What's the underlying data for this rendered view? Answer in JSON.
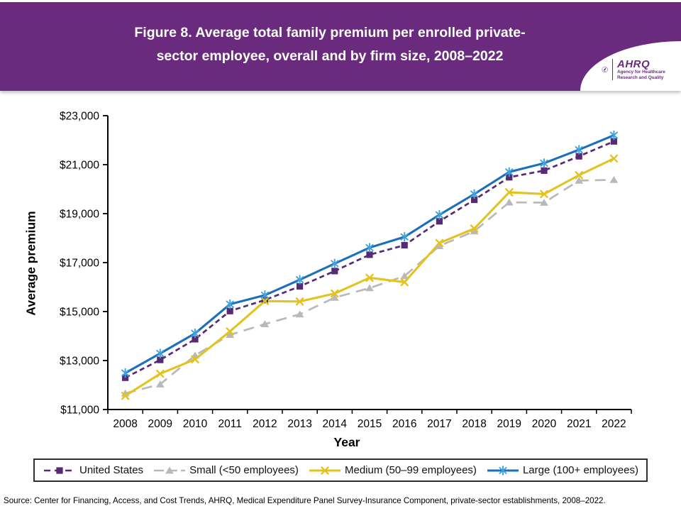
{
  "header": {
    "title_line1": "Figure 8. Average total family premium per enrolled private-",
    "title_line2": "sector employee, overall and by firm size, 2008–2022",
    "banner_color": "#6a2b7f",
    "logo": {
      "org_abbrev": "AHRQ",
      "org_tagline": "Agency for Healthcare Research and Quality"
    }
  },
  "chart_data": {
    "type": "line",
    "title": "Figure 8. Average total family premium per enrolled private-sector employee, overall and by firm size, 2008–2022",
    "xlabel": "Year",
    "ylabel": "Average premium",
    "ylim": [
      11000,
      23000
    ],
    "grid": false,
    "legend_position": "bottom",
    "yticks": [
      {
        "value": 11000,
        "label": "$11,000"
      },
      {
        "value": 13000,
        "label": "$13,000"
      },
      {
        "value": 15000,
        "label": "$15,000"
      },
      {
        "value": 17000,
        "label": "$17,000"
      },
      {
        "value": 19000,
        "label": "$19,000"
      },
      {
        "value": 21000,
        "label": "$21,000"
      },
      {
        "value": 23000,
        "label": "$23,000"
      }
    ],
    "categories": [
      "2008",
      "2009",
      "2010",
      "2011",
      "2012",
      "2013",
      "2014",
      "2015",
      "2016",
      "2017",
      "2018",
      "2019",
      "2020",
      "2021",
      "2022"
    ],
    "series": [
      {
        "name": "United States",
        "slug": "united-states",
        "color": "#582a73",
        "marker": "square",
        "dash": "7,4.5",
        "legend_dash": "9,6",
        "values": [
          12298,
          13027,
          13871,
          15022,
          15473,
          16029,
          16655,
          17322,
          17710,
          18687,
          19565,
          20486,
          20758,
          21342,
          21950
        ]
      },
      {
        "name": "Small (<50 employees)",
        "slug": "small",
        "color": "#b9b9b9",
        "marker": "triangle",
        "dash": "15,9",
        "legend_dash": "14,5",
        "values": [
          11660,
          12030,
          13210,
          14050,
          14490,
          14890,
          15570,
          15960,
          16450,
          17680,
          18280,
          19460,
          19450,
          20350,
          20380
        ]
      },
      {
        "name": "Medium (50–99 employees)",
        "slug": "medium",
        "color": "#e3c320",
        "marker": "x",
        "dash": null,
        "values": [
          11560,
          12460,
          13050,
          14190,
          15430,
          15410,
          15740,
          16380,
          16200,
          17800,
          18390,
          19870,
          19800,
          20570,
          21250
        ]
      },
      {
        "name": "Large (100+ employees)",
        "slug": "large",
        "color": "#1c6fba",
        "marker": "asterisk",
        "marker_color": "#3fa3dc",
        "dash": null,
        "values": [
          12490,
          13290,
          14110,
          15300,
          15670,
          16300,
          16960,
          17610,
          18050,
          18950,
          19800,
          20700,
          21060,
          21610,
          22200
        ]
      }
    ]
  },
  "footer": {
    "source": "Source: Center for Financing, Access, and Cost Trends, AHRQ, Medical Expenditure Panel Survey-Insurance Component, private-sector establishments, 2008–2022."
  }
}
